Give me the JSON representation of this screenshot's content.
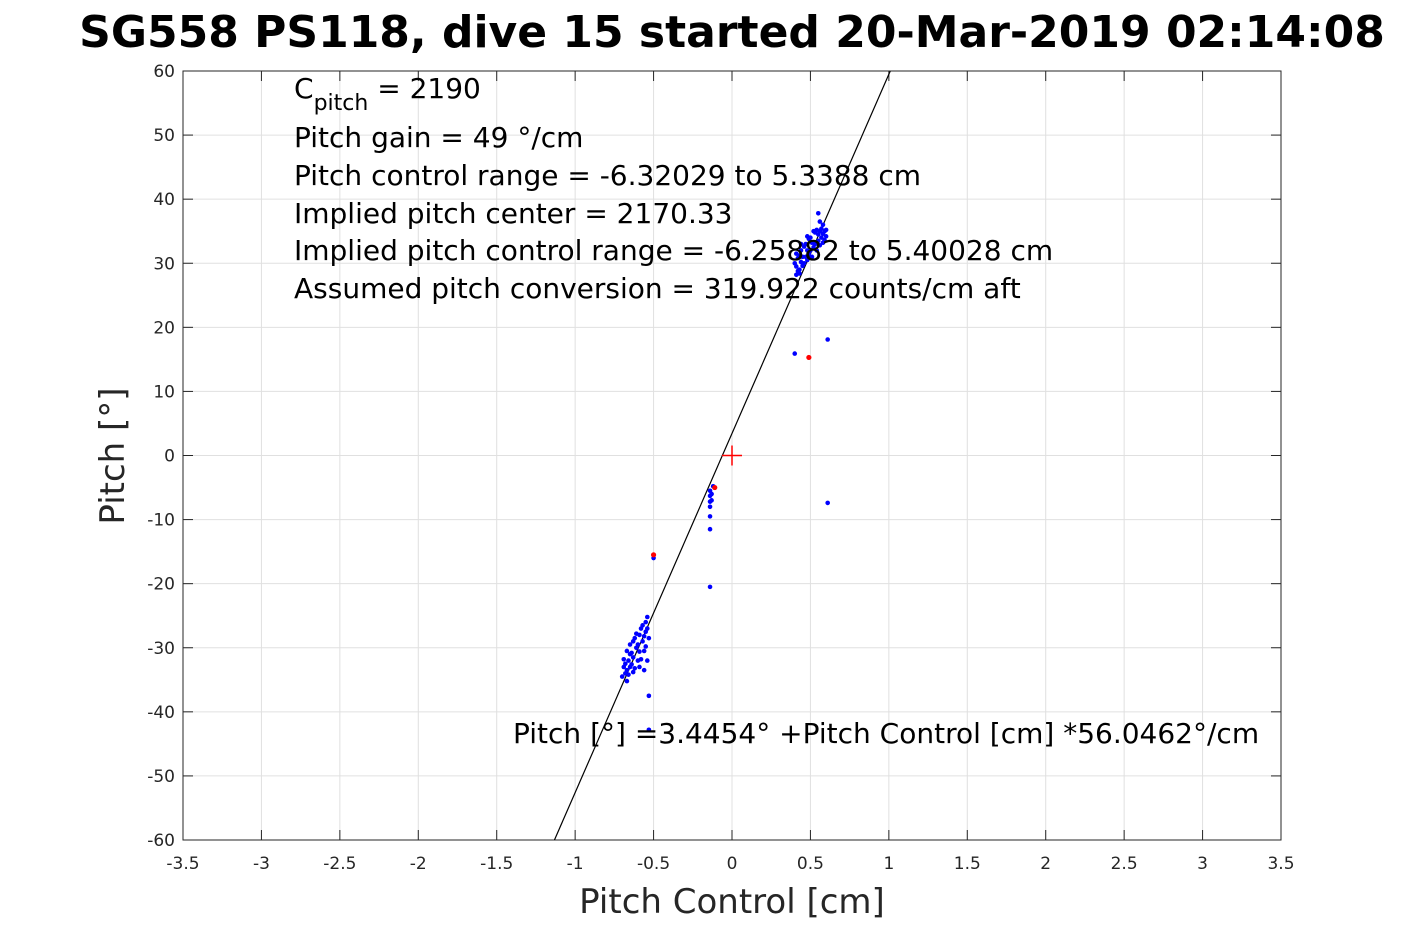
{
  "chart_data": {
    "type": "scatter",
    "title": "SG558 PS118, dive 15 started 20-Mar-2019 02:14:08",
    "xlabel": "Pitch Control [cm]",
    "ylabel": "Pitch [°]",
    "xlim": [
      -3.5,
      3.5
    ],
    "ylim": [
      -60,
      60
    ],
    "grid": true,
    "x_ticks": [
      -3.5,
      -3,
      -2.5,
      -2,
      -1.5,
      -1,
      -0.5,
      0,
      0.5,
      1,
      1.5,
      2,
      2.5,
      3,
      3.5
    ],
    "x_tick_labels": [
      "-3.5",
      "-3",
      "-2.5",
      "-2",
      "-1.5",
      "-1",
      "-0.5",
      "0",
      "0.5",
      "1",
      "1.5",
      "2",
      "2.5",
      "3",
      "3.5"
    ],
    "y_ticks": [
      60,
      50,
      40,
      30,
      20,
      10,
      0,
      -10,
      -20,
      -30,
      -40,
      -50,
      -60
    ],
    "y_tick_labels": [
      "60",
      "50",
      "40",
      "30",
      "20",
      "10",
      "0",
      "-10",
      "-20",
      "-30",
      "-40",
      "-50",
      "-60"
    ],
    "annotations": {
      "c_pitch_base": "C",
      "c_pitch_sub": "pitch",
      "c_pitch_value": " = 2190",
      "lines": [
        "Pitch gain = 49 °/cm",
        "Pitch control range = -6.32029 to 5.3388 cm",
        "Implied pitch center = 2170.33",
        "Implied pitch control range = -6.25882 to 5.40028 cm",
        "Assumed pitch conversion = 319.922 counts/cm aft"
      ],
      "fit_equation": "Pitch [°] =3.4454° +Pitch Control [cm] *56.0462°/cm"
    },
    "fit_line": {
      "intercept": 3.4454,
      "slope": 56.0462
    },
    "center_marker": {
      "x": 0,
      "y": 0,
      "color": "#ff0000"
    },
    "series": [
      {
        "color": "#0000ff",
        "points": [
          [
            -0.7,
            -34.5
          ],
          [
            -0.69,
            -33.0
          ],
          [
            -0.69,
            -31.8
          ],
          [
            -0.68,
            -34.0
          ],
          [
            -0.68,
            -32.5
          ],
          [
            -0.67,
            -33.5
          ],
          [
            -0.67,
            -30.5
          ],
          [
            -0.66,
            -32.0
          ],
          [
            -0.66,
            -34.2
          ],
          [
            -0.65,
            -31.0
          ],
          [
            -0.65,
            -29.5
          ],
          [
            -0.65,
            -33.0
          ],
          [
            -0.64,
            -30.8
          ],
          [
            -0.64,
            -32.6
          ],
          [
            -0.63,
            -29.0
          ],
          [
            -0.63,
            -31.5
          ],
          [
            -0.62,
            -28.5
          ],
          [
            -0.62,
            -33.2
          ],
          [
            -0.61,
            -30.0
          ],
          [
            -0.61,
            -27.8
          ],
          [
            -0.6,
            -29.5
          ],
          [
            -0.6,
            -32.0
          ],
          [
            -0.59,
            -28.0
          ],
          [
            -0.59,
            -30.6
          ],
          [
            -0.58,
            -27.0
          ],
          [
            -0.58,
            -31.8
          ],
          [
            -0.57,
            -29.0
          ],
          [
            -0.57,
            -26.5
          ],
          [
            -0.56,
            -28.2
          ],
          [
            -0.56,
            -30.5
          ],
          [
            -0.55,
            -26.0
          ],
          [
            -0.55,
            -27.5
          ],
          [
            -0.55,
            -29.8
          ],
          [
            -0.54,
            -25.2
          ],
          [
            -0.54,
            -27.0
          ],
          [
            -0.54,
            -32.0
          ],
          [
            -0.53,
            -28.5
          ],
          [
            -0.67,
            -35.2
          ],
          [
            -0.63,
            -33.8
          ],
          [
            -0.59,
            -33.0
          ],
          [
            -0.56,
            -33.5
          ],
          [
            -0.53,
            -37.5
          ],
          [
            -0.53,
            -42.8
          ],
          [
            -0.5,
            -16.0
          ],
          [
            -0.14,
            -5.5
          ],
          [
            -0.14,
            -6.3
          ],
          [
            -0.14,
            -7.2
          ],
          [
            -0.14,
            -8.0
          ],
          [
            -0.13,
            -6.0
          ],
          [
            -0.13,
            -7.0
          ],
          [
            -0.14,
            -9.5
          ],
          [
            -0.14,
            -11.5
          ],
          [
            -0.14,
            -20.5
          ],
          [
            -0.12,
            -4.8
          ],
          [
            0.41,
            28.2
          ],
          [
            0.41,
            29.5
          ],
          [
            0.42,
            30.8
          ],
          [
            0.42,
            28.8
          ],
          [
            0.43,
            31.2
          ],
          [
            0.43,
            29.0
          ],
          [
            0.44,
            30.2
          ],
          [
            0.44,
            32.0
          ],
          [
            0.45,
            29.6
          ],
          [
            0.45,
            31.0
          ],
          [
            0.46,
            30.0
          ],
          [
            0.46,
            32.6
          ],
          [
            0.47,
            31.0
          ],
          [
            0.47,
            33.0
          ],
          [
            0.48,
            30.5
          ],
          [
            0.48,
            32.0
          ],
          [
            0.49,
            31.5
          ],
          [
            0.49,
            33.8
          ],
          [
            0.5,
            32.0
          ],
          [
            0.5,
            34.0
          ],
          [
            0.51,
            31.0
          ],
          [
            0.51,
            33.2
          ],
          [
            0.52,
            32.5
          ],
          [
            0.52,
            35.0
          ],
          [
            0.53,
            33.0
          ],
          [
            0.53,
            34.8
          ],
          [
            0.54,
            32.0
          ],
          [
            0.54,
            35.2
          ],
          [
            0.55,
            33.5
          ],
          [
            0.55,
            34.5
          ],
          [
            0.56,
            32.8
          ],
          [
            0.56,
            35.0
          ],
          [
            0.57,
            34.0
          ],
          [
            0.57,
            35.4
          ],
          [
            0.58,
            33.2
          ],
          [
            0.58,
            34.6
          ],
          [
            0.59,
            35.0
          ],
          [
            0.59,
            33.6
          ],
          [
            0.6,
            34.2
          ],
          [
            0.6,
            35.2
          ],
          [
            0.55,
            37.8
          ],
          [
            0.56,
            36.5
          ],
          [
            0.58,
            36.0
          ],
          [
            0.48,
            34.2
          ],
          [
            0.44,
            33.0
          ],
          [
            0.4,
            30.0
          ],
          [
            0.41,
            31.5
          ],
          [
            0.43,
            28.4
          ],
          [
            0.4,
            15.9
          ],
          [
            0.61,
            18.1
          ],
          [
            0.61,
            -7.4
          ]
        ]
      },
      {
        "color": "#ff0000",
        "points": [
          [
            -0.5,
            -15.5
          ],
          [
            0.49,
            15.3
          ],
          [
            -0.11,
            -5.0
          ]
        ]
      }
    ]
  }
}
